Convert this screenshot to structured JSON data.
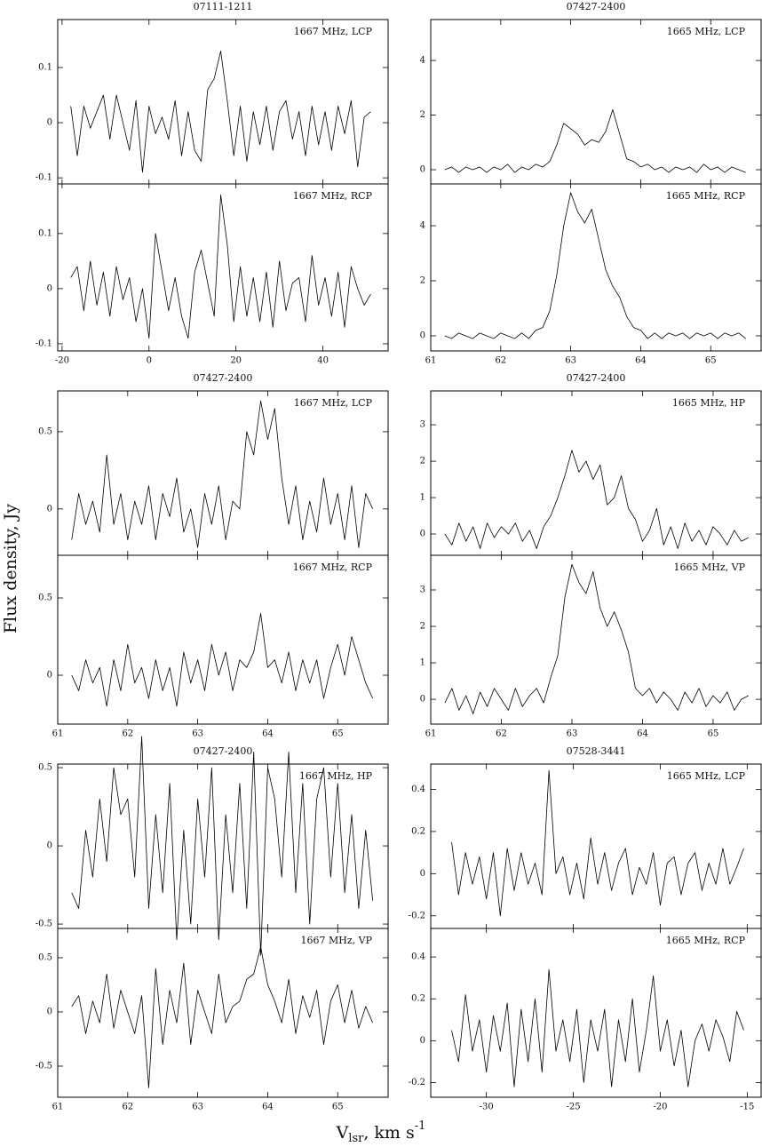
{
  "y_label": "Flux density, Jy",
  "x_label": {
    "main": "V",
    "sub": "lsr",
    "rest": ", km s",
    "sup": "-1"
  },
  "chart_data": [
    {
      "type": "line",
      "title": "07111-1211",
      "xlim": [
        -21,
        55
      ],
      "xticks": [
        -20,
        0,
        20,
        40
      ],
      "x": [
        -18,
        -16.5,
        -15,
        -13.5,
        -12,
        -10.5,
        -9,
        -7.5,
        -6,
        -4.5,
        -3,
        -1.5,
        0,
        1.5,
        3,
        4.5,
        6,
        7.5,
        9,
        10.5,
        12,
        13.5,
        15,
        16.5,
        18,
        19.5,
        21,
        22.5,
        24,
        25.5,
        27,
        28.5,
        30,
        31.5,
        33,
        34.5,
        36,
        37.5,
        39,
        40.5,
        42,
        43.5,
        45,
        46.5,
        48,
        49.5,
        51
      ],
      "series": [
        {
          "name": "1667 MHz, LCP",
          "color": "#000000",
          "ylim": [
            -0.111,
            0.187
          ],
          "yticks": [
            -0.1,
            0,
            0.1
          ],
          "values": [
            0.03,
            -0.06,
            0.03,
            -0.01,
            0.02,
            0.05,
            -0.03,
            0.05,
            0.0,
            -0.05,
            0.04,
            -0.09,
            0.03,
            -0.02,
            0.01,
            -0.03,
            0.04,
            -0.06,
            0.02,
            -0.05,
            -0.07,
            0.06,
            0.08,
            0.13,
            0.04,
            -0.06,
            0.03,
            -0.07,
            0.02,
            -0.04,
            0.03,
            -0.05,
            0.02,
            0.04,
            -0.03,
            0.02,
            -0.06,
            0.03,
            -0.04,
            0.02,
            -0.05,
            0.03,
            -0.02,
            0.04,
            -0.08,
            0.01,
            0.02
          ]
        },
        {
          "name": "1667 MHz, RCP",
          "color": "#000000",
          "ylim": [
            -0.113,
            0.19
          ],
          "yticks": [
            -0.1,
            0,
            0.1
          ],
          "values": [
            0.02,
            0.04,
            -0.04,
            0.05,
            -0.03,
            0.03,
            -0.05,
            0.04,
            -0.02,
            0.02,
            -0.06,
            0.0,
            -0.09,
            0.1,
            0.03,
            -0.04,
            0.02,
            -0.05,
            -0.09,
            0.03,
            0.07,
            0.01,
            -0.05,
            0.17,
            0.08,
            -0.06,
            0.04,
            -0.05,
            0.02,
            -0.06,
            0.03,
            -0.07,
            0.05,
            -0.04,
            0.01,
            0.02,
            -0.06,
            0.06,
            -0.03,
            0.02,
            -0.05,
            0.03,
            -0.07,
            0.04,
            0.0,
            -0.03,
            -0.01
          ]
        }
      ]
    },
    {
      "type": "line",
      "title": "07427-2400",
      "xlim": [
        61,
        65.72
      ],
      "xticks": [
        61,
        62,
        63,
        64,
        65
      ],
      "x": [
        61.2,
        61.3,
        61.4,
        61.5,
        61.6,
        61.7,
        61.8,
        61.9,
        62.0,
        62.1,
        62.2,
        62.3,
        62.4,
        62.5,
        62.6,
        62.7,
        62.8,
        62.9,
        63.0,
        63.1,
        63.2,
        63.3,
        63.4,
        63.5,
        63.6,
        63.7,
        63.8,
        63.9,
        64.0,
        64.1,
        64.2,
        64.3,
        64.4,
        64.5,
        64.6,
        64.7,
        64.8,
        64.9,
        65.0,
        65.1,
        65.2,
        65.3,
        65.4,
        65.5
      ],
      "series": [
        {
          "name": "1665 MHz, LCP",
          "color": "#000000",
          "ylim": [
            -0.52,
            5.5
          ],
          "yticks": [
            0,
            2,
            4
          ],
          "values": [
            0.0,
            0.1,
            -0.1,
            0.1,
            0.0,
            0.1,
            -0.1,
            0.1,
            0.0,
            0.2,
            -0.1,
            0.1,
            0.0,
            0.2,
            0.1,
            0.3,
            0.9,
            1.7,
            1.5,
            1.3,
            0.9,
            1.1,
            1.0,
            1.4,
            2.2,
            1.3,
            0.4,
            0.3,
            0.1,
            0.2,
            0.0,
            0.1,
            -0.1,
            0.1,
            0.0,
            0.1,
            -0.1,
            0.2,
            0.0,
            0.1,
            -0.1,
            0.1,
            0.0,
            -0.1
          ]
        },
        {
          "name": "1665 MHz, RCP",
          "color": "#000000",
          "ylim": [
            -0.55,
            5.52
          ],
          "yticks": [
            0,
            2,
            4
          ],
          "values": [
            0.0,
            -0.1,
            0.1,
            0.0,
            -0.1,
            0.1,
            0.0,
            -0.1,
            0.1,
            0.0,
            -0.1,
            0.1,
            -0.1,
            0.2,
            0.3,
            0.9,
            2.2,
            4.0,
            5.2,
            4.5,
            4.1,
            4.6,
            3.5,
            2.4,
            1.8,
            1.4,
            0.7,
            0.3,
            0.2,
            -0.1,
            0.1,
            -0.1,
            0.1,
            0.0,
            0.1,
            -0.1,
            0.1,
            0.0,
            0.1,
            -0.1,
            0.1,
            0.0,
            0.1,
            -0.1
          ]
        }
      ]
    },
    {
      "type": "line",
      "title": "07427-2400",
      "xlim": [
        61,
        65.72
      ],
      "xticks": [
        61,
        62,
        63,
        64,
        65
      ],
      "x": [
        61.2,
        61.3,
        61.4,
        61.5,
        61.6,
        61.7,
        61.8,
        61.9,
        62.0,
        62.1,
        62.2,
        62.3,
        62.4,
        62.5,
        62.6,
        62.7,
        62.8,
        62.9,
        63.0,
        63.1,
        63.2,
        63.3,
        63.4,
        63.5,
        63.6,
        63.7,
        63.8,
        63.9,
        64.0,
        64.1,
        64.2,
        64.3,
        64.4,
        64.5,
        64.6,
        64.7,
        64.8,
        64.9,
        65.0,
        65.1,
        65.2,
        65.3,
        65.4,
        65.5
      ],
      "series": [
        {
          "name": "1667 MHz, LCP",
          "color": "#000000",
          "ylim": [
            -0.3,
            0.764
          ],
          "yticks": [
            0,
            0.5
          ],
          "values": [
            -0.2,
            0.1,
            -0.1,
            0.05,
            -0.15,
            0.35,
            -0.1,
            0.1,
            -0.2,
            0.05,
            -0.1,
            0.15,
            -0.2,
            0.1,
            -0.05,
            0.2,
            -0.15,
            0.0,
            -0.25,
            0.1,
            -0.1,
            0.15,
            -0.2,
            0.05,
            0.0,
            0.5,
            0.35,
            0.7,
            0.45,
            0.65,
            0.2,
            -0.1,
            0.15,
            -0.2,
            0.05,
            -0.15,
            0.2,
            -0.1,
            0.1,
            -0.2,
            0.15,
            -0.25,
            0.1,
            0.0
          ]
        },
        {
          "name": "1667 MHz, RCP",
          "color": "#000000",
          "ylim": [
            -0.316,
            0.776
          ],
          "yticks": [
            0,
            0.5
          ],
          "values": [
            0.0,
            -0.1,
            0.1,
            -0.05,
            0.05,
            -0.2,
            0.1,
            -0.1,
            0.2,
            -0.05,
            0.05,
            -0.15,
            0.1,
            -0.1,
            0.05,
            -0.2,
            0.15,
            -0.05,
            0.1,
            -0.1,
            0.2,
            0.0,
            0.15,
            -0.1,
            0.1,
            0.05,
            0.15,
            0.4,
            0.05,
            0.1,
            -0.05,
            0.15,
            -0.1,
            0.1,
            -0.05,
            0.1,
            -0.15,
            0.05,
            0.2,
            0.0,
            0.25,
            0.1,
            -0.05,
            -0.15
          ]
        }
      ]
    },
    {
      "type": "line",
      "title": "07427-2400",
      "xlim": [
        61,
        65.68
      ],
      "xticks": [
        61,
        62,
        63,
        64,
        65
      ],
      "x": [
        61.2,
        61.3,
        61.4,
        61.5,
        61.6,
        61.7,
        61.8,
        61.9,
        62.0,
        62.1,
        62.2,
        62.3,
        62.4,
        62.5,
        62.6,
        62.7,
        62.8,
        62.9,
        63.0,
        63.1,
        63.2,
        63.3,
        63.4,
        63.5,
        63.6,
        63.7,
        63.8,
        63.9,
        64.0,
        64.1,
        64.2,
        64.3,
        64.4,
        64.5,
        64.6,
        64.7,
        64.8,
        64.9,
        65.0,
        65.1,
        65.2,
        65.3,
        65.4,
        65.5
      ],
      "series": [
        {
          "name": "1665 MHz, HP",
          "color": "#000000",
          "ylim": [
            -0.585,
            3.93
          ],
          "yticks": [
            0,
            1,
            2,
            3
          ],
          "values": [
            0.0,
            -0.3,
            0.3,
            -0.2,
            0.2,
            -0.4,
            0.3,
            -0.1,
            0.2,
            0.0,
            0.3,
            -0.2,
            0.1,
            -0.4,
            0.2,
            0.5,
            1.0,
            1.6,
            2.3,
            1.7,
            2.0,
            1.5,
            1.9,
            0.8,
            1.0,
            1.6,
            0.7,
            0.4,
            -0.2,
            0.1,
            0.7,
            -0.3,
            0.2,
            -0.4,
            0.3,
            -0.2,
            0.1,
            -0.3,
            0.2,
            0.0,
            -0.3,
            0.1,
            -0.2,
            -0.1
          ]
        },
        {
          "name": "1665 MHz, VP",
          "color": "#000000",
          "ylim": [
            -0.68,
            3.95
          ],
          "yticks": [
            0,
            1,
            2,
            3
          ],
          "values": [
            -0.1,
            0.3,
            -0.3,
            0.1,
            -0.4,
            0.2,
            -0.2,
            0.3,
            0.0,
            -0.3,
            0.3,
            -0.2,
            0.1,
            0.3,
            -0.1,
            0.6,
            1.2,
            2.8,
            3.7,
            3.2,
            2.9,
            3.5,
            2.5,
            2.0,
            2.4,
            1.9,
            1.3,
            0.3,
            0.1,
            0.3,
            -0.1,
            0.2,
            0.0,
            -0.3,
            0.2,
            -0.1,
            0.3,
            -0.2,
            0.1,
            -0.1,
            0.2,
            -0.3,
            0.0,
            0.1
          ]
        }
      ]
    },
    {
      "type": "line",
      "title": "07427-2400",
      "xlim": [
        61,
        65.72
      ],
      "xticks": [
        61,
        62,
        63,
        64,
        65
      ],
      "x": [
        61.2,
        61.3,
        61.4,
        61.5,
        61.6,
        61.7,
        61.8,
        61.9,
        62.0,
        62.1,
        62.2,
        62.3,
        62.4,
        62.5,
        62.6,
        62.7,
        62.8,
        62.9,
        63.0,
        63.1,
        63.2,
        63.3,
        63.4,
        63.5,
        63.6,
        63.7,
        63.8,
        63.9,
        64.0,
        64.1,
        64.2,
        64.3,
        64.4,
        64.5,
        64.6,
        64.7,
        64.8,
        64.9,
        65.0,
        65.1,
        65.2,
        65.3,
        65.4,
        65.5
      ],
      "series": [
        {
          "name": "1667 MHz, HP",
          "color": "#000000",
          "ylim": [
            -0.528,
            0.523
          ],
          "yticks": [
            -0.5,
            0,
            0.5
          ],
          "values": [
            -0.3,
            -0.4,
            0.1,
            -0.2,
            0.3,
            -0.1,
            0.5,
            0.2,
            0.3,
            -0.2,
            0.7,
            -0.4,
            0.2,
            -0.3,
            0.4,
            -0.6,
            0.1,
            -0.5,
            0.3,
            -0.2,
            0.5,
            -0.6,
            0.2,
            -0.3,
            0.4,
            -0.4,
            0.6,
            -0.7,
            0.5,
            0.3,
            -0.2,
            0.6,
            -0.3,
            0.4,
            -0.5,
            0.3,
            0.5,
            -0.2,
            0.4,
            -0.3,
            0.2,
            -0.4,
            0.1,
            -0.35
          ]
        },
        {
          "name": "1667 MHz, VP",
          "color": "#000000",
          "ylim": [
            -0.787,
            0.77
          ],
          "yticks": [
            -0.5,
            0,
            0.5
          ],
          "values": [
            0.05,
            0.15,
            -0.2,
            0.1,
            -0.1,
            0.35,
            -0.15,
            0.2,
            0.0,
            -0.2,
            0.15,
            -0.7,
            0.4,
            -0.3,
            0.2,
            -0.1,
            0.45,
            -0.3,
            0.2,
            0.0,
            -0.2,
            0.35,
            -0.1,
            0.05,
            0.1,
            0.3,
            0.35,
            0.6,
            0.25,
            0.1,
            -0.1,
            0.3,
            -0.2,
            0.15,
            -0.05,
            0.2,
            -0.3,
            0.1,
            0.25,
            -0.1,
            0.2,
            -0.15,
            0.05,
            -0.1
          ]
        }
      ]
    },
    {
      "type": "line",
      "title": "07528-3441",
      "xlim": [
        -33.2,
        -14.2
      ],
      "xticks": [
        -30,
        -25,
        -20,
        -15
      ],
      "x": [
        -32,
        -31.6,
        -31.2,
        -30.8,
        -30.4,
        -30,
        -29.6,
        -29.2,
        -28.8,
        -28.4,
        -28,
        -27.6,
        -27.2,
        -26.8,
        -26.4,
        -26,
        -25.6,
        -25.2,
        -24.8,
        -24.4,
        -24,
        -23.6,
        -23.2,
        -22.8,
        -22.4,
        -22,
        -21.6,
        -21.2,
        -20.8,
        -20.4,
        -20,
        -19.6,
        -19.2,
        -18.8,
        -18.4,
        -18,
        -17.6,
        -17.2,
        -16.8,
        -16.4,
        -16,
        -15.6,
        -15.2
      ],
      "series": [
        {
          "name": "1665 MHz, LCP",
          "color": "#000000",
          "ylim": [
            -0.26,
            0.52
          ],
          "yticks": [
            -0.2,
            0,
            0.2,
            0.4
          ],
          "values": [
            0.15,
            -0.1,
            0.1,
            -0.05,
            0.08,
            -0.12,
            0.1,
            -0.2,
            0.12,
            -0.08,
            0.1,
            -0.05,
            0.05,
            -0.1,
            0.49,
            0.0,
            0.08,
            -0.1,
            0.05,
            -0.12,
            0.17,
            -0.05,
            0.1,
            -0.08,
            0.05,
            0.12,
            -0.1,
            0.03,
            -0.05,
            0.1,
            -0.15,
            0.05,
            0.08,
            -0.1,
            0.05,
            0.1,
            -0.08,
            0.05,
            -0.05,
            0.12,
            -0.05,
            0.03,
            0.12
          ]
        },
        {
          "name": "1665 MHz, RCP",
          "color": "#000000",
          "ylim": [
            -0.27,
            0.536
          ],
          "yticks": [
            -0.2,
            0,
            0.2,
            0.4
          ],
          "values": [
            0.05,
            -0.1,
            0.22,
            -0.05,
            0.1,
            -0.15,
            0.12,
            -0.05,
            0.18,
            -0.22,
            0.15,
            -0.1,
            0.2,
            -0.15,
            0.34,
            -0.05,
            0.1,
            -0.1,
            0.15,
            -0.2,
            0.1,
            -0.05,
            0.15,
            -0.22,
            0.1,
            -0.1,
            0.2,
            -0.15,
            0.05,
            0.31,
            -0.05,
            0.1,
            -0.12,
            0.05,
            -0.22,
            0.0,
            0.08,
            -0.05,
            0.1,
            0.02,
            -0.1,
            0.14,
            0.05
          ]
        }
      ]
    }
  ]
}
